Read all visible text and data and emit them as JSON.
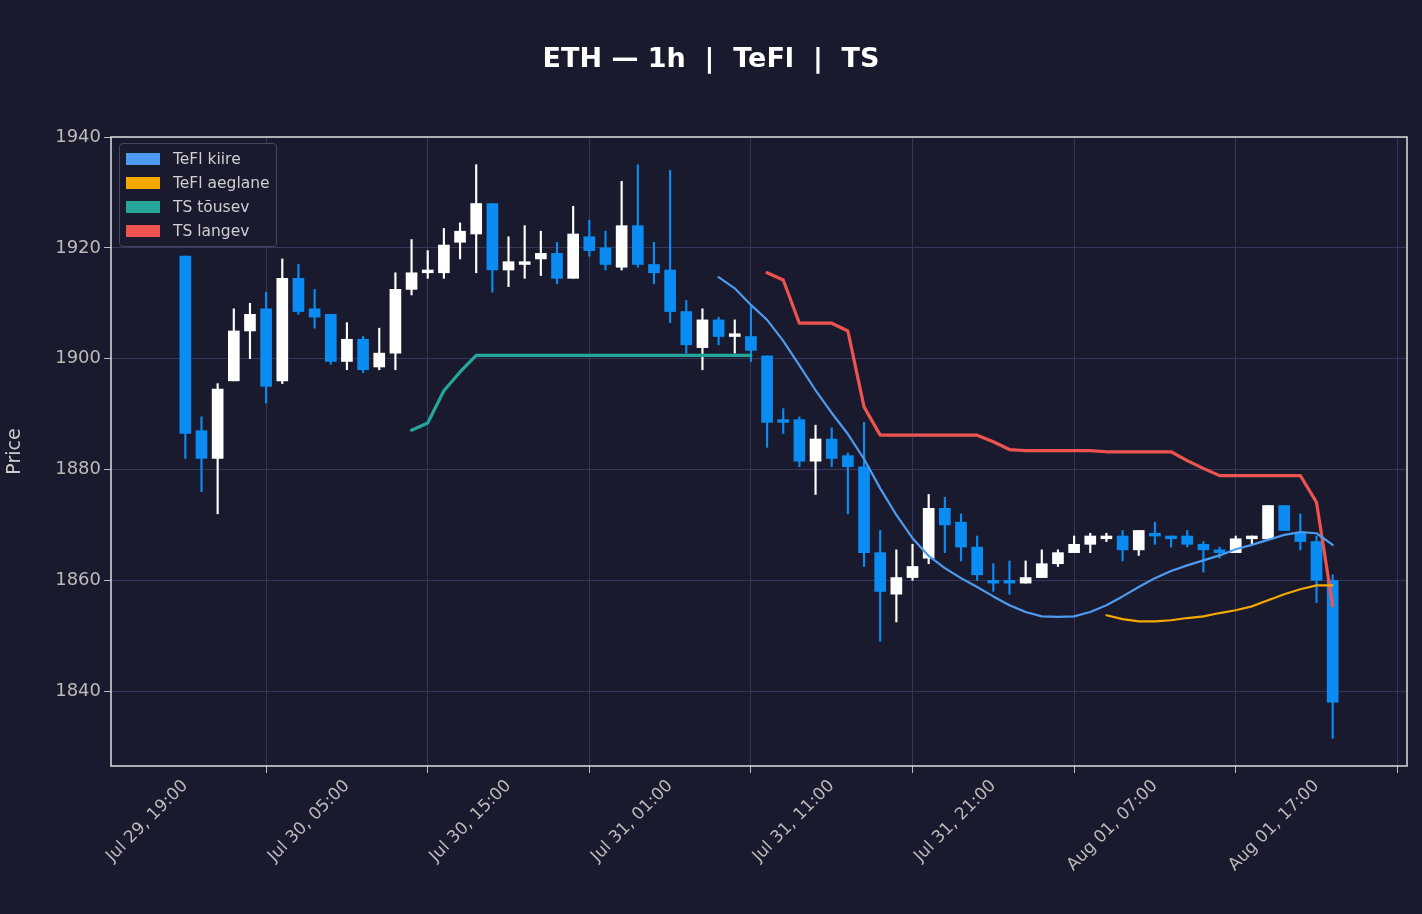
{
  "chart_data": {
    "type": "candlestick",
    "title": "ETH — 1h  |  TeFl  |  TS",
    "ylabel": "Price",
    "categories": [
      "Jul 29, 19:00",
      null,
      null,
      null,
      null,
      null,
      null,
      null,
      null,
      null,
      "Jul 30, 05:00",
      null,
      null,
      null,
      null,
      null,
      null,
      null,
      null,
      null,
      "Jul 30, 15:00",
      null,
      null,
      null,
      null,
      null,
      null,
      null,
      null,
      null,
      "Jul 31, 01:00",
      null,
      null,
      null,
      null,
      null,
      null,
      null,
      null,
      null,
      "Jul 31, 11:00",
      null,
      null,
      null,
      null,
      null,
      null,
      null,
      null,
      null,
      "Jul 31, 21:00",
      null,
      null,
      null,
      null,
      null,
      null,
      null,
      null,
      null,
      "Aug 01, 07:00",
      null,
      null,
      null,
      null,
      null,
      null,
      null,
      null,
      null,
      "Aug 01, 17:00",
      null
    ],
    "ohlc": [
      [
        1918.5,
        1918.5,
        1882,
        1886.5
      ],
      [
        1887,
        1889.5,
        1876,
        1882
      ],
      [
        1882,
        1895.5,
        1872,
        1894.5
      ],
      [
        1896,
        1909,
        1896,
        1905
      ],
      [
        1905,
        1910,
        1900,
        1908
      ],
      [
        1909,
        1912,
        1892,
        1895
      ],
      [
        1896,
        1918,
        1895.5,
        1914.5
      ],
      [
        1914.5,
        1917,
        1908,
        1908.5
      ],
      [
        1909,
        1912.5,
        1905.5,
        1907.5
      ],
      [
        1908,
        1908,
        1899,
        1899.5
      ],
      [
        1899.5,
        1906.5,
        1898,
        1903.5
      ],
      [
        1903.5,
        1904,
        1897.5,
        1898
      ],
      [
        1898.5,
        1905.5,
        1898,
        1901
      ],
      [
        1901,
        1915.5,
        1898,
        1912.5
      ],
      [
        1912.5,
        1921.5,
        1911.5,
        1915.5
      ],
      [
        1915.5,
        1919.5,
        1914.5,
        1916
      ],
      [
        1915.5,
        1923.5,
        1914.5,
        1920.5
      ],
      [
        1921,
        1924.5,
        1918,
        1923
      ],
      [
        1922.5,
        1935,
        1915.5,
        1928
      ],
      [
        1928,
        1928,
        1912,
        1916
      ],
      [
        1916,
        1922,
        1913,
        1917.5
      ],
      [
        1917,
        1924,
        1914.5,
        1917.5
      ],
      [
        1918,
        1923,
        1915,
        1919
      ],
      [
        1919,
        1921,
        1913.5,
        1914.5
      ],
      [
        1914.5,
        1927.5,
        1914.5,
        1922.5
      ],
      [
        1922,
        1925,
        1918.5,
        1919.5
      ],
      [
        1920,
        1923,
        1916,
        1917
      ],
      [
        1916.5,
        1932,
        1916,
        1924
      ],
      [
        1924,
        1935,
        1916.5,
        1917
      ],
      [
        1917,
        1921,
        1913.5,
        1915.5
      ],
      [
        1916,
        1934,
        1906.5,
        1908.5
      ],
      [
        1908.5,
        1910.5,
        1901,
        1902.5
      ],
      [
        1902,
        1909,
        1898,
        1907
      ],
      [
        1907,
        1907.5,
        1902.5,
        1904
      ],
      [
        1904,
        1907,
        1901,
        1904.5
      ],
      [
        1904,
        1909.5,
        1899.5,
        1901.5
      ],
      [
        1900.5,
        1900.5,
        1884,
        1888.5
      ],
      [
        1889,
        1891,
        1886.5,
        1888.5
      ],
      [
        1889,
        1889.5,
        1880.5,
        1881.5
      ],
      [
        1881.5,
        1888,
        1875.5,
        1885.5
      ],
      [
        1885.5,
        1887.5,
        1880.5,
        1882
      ],
      [
        1882.5,
        1883,
        1872,
        1880.5
      ],
      [
        1880.5,
        1888.5,
        1862.5,
        1865
      ],
      [
        1865,
        1869,
        1849,
        1858
      ],
      [
        1857.5,
        1865.5,
        1852.5,
        1860.5
      ],
      [
        1860.5,
        1866.5,
        1860,
        1862.5
      ],
      [
        1864,
        1875.5,
        1863,
        1873
      ],
      [
        1873,
        1875,
        1865,
        1870
      ],
      [
        1870.5,
        1872,
        1863.5,
        1866
      ],
      [
        1866,
        1868,
        1860,
        1861
      ],
      [
        1860,
        1863,
        1858,
        1859.5
      ],
      [
        1860,
        1863.5,
        1857.5,
        1859.5
      ],
      [
        1859.5,
        1863.5,
        1859.5,
        1860.5
      ],
      [
        1860.5,
        1865.5,
        1860.5,
        1863
      ],
      [
        1863,
        1865.5,
        1862.5,
        1865
      ],
      [
        1865,
        1868,
        1865,
        1866.5
      ],
      [
        1866.5,
        1868.5,
        1865,
        1868
      ],
      [
        1867.5,
        1868.5,
        1867,
        1868
      ],
      [
        1868,
        1869,
        1863.5,
        1865.5
      ],
      [
        1865.5,
        1869,
        1864.5,
        1869
      ],
      [
        1868.5,
        1870.5,
        1866.5,
        1868
      ],
      [
        1868,
        1868,
        1866,
        1867.5
      ],
      [
        1868,
        1869,
        1866,
        1866.5
      ],
      [
        1866.5,
        1867,
        1861.5,
        1865.5
      ],
      [
        1865.5,
        1866,
        1864,
        1865
      ],
      [
        1865,
        1868,
        1865,
        1867.5
      ],
      [
        1867.5,
        1868,
        1866.5,
        1868
      ],
      [
        1867.5,
        1873.5,
        1867.5,
        1873.5
      ],
      [
        1873.5,
        1873.5,
        1869,
        1869
      ],
      [
        1868.5,
        1872,
        1865.5,
        1867
      ],
      [
        1867,
        1868,
        1856,
        1860
      ],
      [
        1860,
        1861,
        1831.5,
        1838
      ]
    ],
    "colors": [
      "#0a8cf2",
      "#0a8cf2",
      "#ffffff",
      "#ffffff",
      "#ffffff",
      "#0a8cf2",
      "#ffffff",
      "#0a8cf2",
      "#0a8cf2",
      "#0a8cf2",
      "#ffffff",
      "#0a8cf2",
      "#ffffff",
      "#ffffff",
      "#ffffff",
      "#ffffff",
      "#ffffff",
      "#ffffff",
      "#ffffff",
      "#0a8cf2",
      "#ffffff",
      "#ffffff",
      "#ffffff",
      "#0a8cf2",
      "#ffffff",
      "#0a8cf2",
      "#0a8cf2",
      "#ffffff",
      "#0a8cf2",
      "#0a8cf2",
      "#0a8cf2",
      "#0a8cf2",
      "#ffffff",
      "#0a8cf2",
      "#ffffff",
      "#0a8cf2",
      "#0a8cf2",
      "#0a8cf2",
      "#0a8cf2",
      "#ffffff",
      "#0a8cf2",
      "#0a8cf2",
      "#0a8cf2",
      "#0a8cf2",
      "#ffffff",
      "#ffffff",
      "#ffffff",
      "#0a8cf2",
      "#0a8cf2",
      "#0a8cf2",
      "#0a8cf2",
      "#0a8cf2",
      "#ffffff",
      "#ffffff",
      "#ffffff",
      "#ffffff",
      "#ffffff",
      "#ffffff",
      "#0a8cf2",
      "#ffffff",
      "#0a8cf2",
      "#0a8cf2",
      "#0a8cf2",
      "#0a8cf2",
      "#0a8cf2",
      "#ffffff",
      "#ffffff",
      "#ffffff",
      "#0a8cf2",
      "#0a8cf2",
      "#0a8cf2",
      "#0a8cf2"
    ],
    "series": [
      {
        "type": "line",
        "name": "TeFl kiire",
        "color": "#4d9bf0",
        "values": [
          null,
          null,
          null,
          null,
          null,
          null,
          null,
          null,
          null,
          null,
          null,
          null,
          null,
          null,
          null,
          null,
          null,
          null,
          null,
          null,
          null,
          null,
          null,
          null,
          null,
          null,
          null,
          null,
          null,
          null,
          null,
          null,
          null,
          1914.7,
          1912.7,
          1909.7,
          1907,
          1903.2,
          1898.8,
          1894.3,
          1890.2,
          1886.4,
          1881.9,
          1876.6,
          1871.8,
          1867.6,
          1864.4,
          1862.2,
          1860.4,
          1858.8,
          1857.1,
          1855.5,
          1854.3,
          1853.5,
          1853.4,
          1853.5,
          1854.3,
          1855.5,
          1857.1,
          1858.8,
          1860.4,
          1861.7,
          1862.7,
          1863.6,
          1864.5,
          1865.6,
          1866.4,
          1867.3,
          1868.2,
          1868.7,
          1868.5,
          1866.4
        ]
      },
      {
        "type": "line",
        "name": "TeFl aeglane",
        "color": "#f5a800",
        "values": [
          null,
          null,
          null,
          null,
          null,
          null,
          null,
          null,
          null,
          null,
          null,
          null,
          null,
          null,
          null,
          null,
          null,
          null,
          null,
          null,
          null,
          null,
          null,
          null,
          null,
          null,
          null,
          null,
          null,
          null,
          null,
          null,
          null,
          null,
          null,
          null,
          null,
          null,
          null,
          null,
          null,
          null,
          null,
          null,
          null,
          null,
          null,
          null,
          null,
          null,
          null,
          null,
          null,
          null,
          null,
          null,
          null,
          1853.7,
          1853,
          1852.6,
          1852.6,
          1852.8,
          1853.2,
          1853.5,
          1854.1,
          1854.6,
          1855.3,
          1856.4,
          1857.5,
          1858.4,
          1859.1,
          1859.1
        ]
      },
      {
        "type": "line",
        "name": "TS tõusev",
        "color": "#26a69a",
        "values": [
          null,
          null,
          null,
          null,
          null,
          null,
          null,
          null,
          null,
          null,
          null,
          null,
          null,
          null,
          1887.1,
          1888.4,
          1894.2,
          1897.6,
          1900.6,
          1900.6,
          1900.6,
          1900.6,
          1900.6,
          1900.6,
          1900.6,
          1900.6,
          1900.6,
          1900.6,
          1900.6,
          1900.6,
          1900.6,
          1900.6,
          1900.6,
          1900.6,
          1900.6,
          1900.6,
          null,
          null,
          null,
          null,
          null,
          null,
          null,
          null,
          null,
          null,
          null,
          null,
          null,
          null,
          null,
          null,
          null,
          null,
          null,
          null,
          null,
          null,
          null,
          null,
          null,
          null,
          null,
          null,
          null,
          null,
          null,
          null,
          null,
          null,
          null,
          null
        ]
      },
      {
        "type": "line",
        "name": "TS langev",
        "color": "#ef5350",
        "values": [
          null,
          null,
          null,
          null,
          null,
          null,
          null,
          null,
          null,
          null,
          null,
          null,
          null,
          null,
          null,
          null,
          null,
          null,
          null,
          null,
          null,
          null,
          null,
          null,
          null,
          null,
          null,
          null,
          null,
          null,
          null,
          null,
          null,
          null,
          null,
          null,
          1915.5,
          1914.2,
          1906.4,
          1906.4,
          1906.4,
          1905,
          1891.3,
          1886.2,
          1886.2,
          1886.2,
          1886.2,
          1886.2,
          1886.2,
          1886.2,
          1885,
          1883.6,
          1883.4,
          1883.4,
          1883.4,
          1883.4,
          1883.4,
          1883.2,
          1883.2,
          1883.2,
          1883.2,
          1883.2,
          1881.6,
          1880.2,
          1878.9,
          1878.9,
          1878.9,
          1878.9,
          1878.9,
          1878.9,
          1874.1,
          1855.4
        ]
      }
    ],
    "ylim": [
      1826.5,
      1940
    ],
    "yticks": [
      1840,
      1860,
      1880,
      1900,
      1920,
      1940
    ],
    "grid": true,
    "legend": "top left"
  }
}
